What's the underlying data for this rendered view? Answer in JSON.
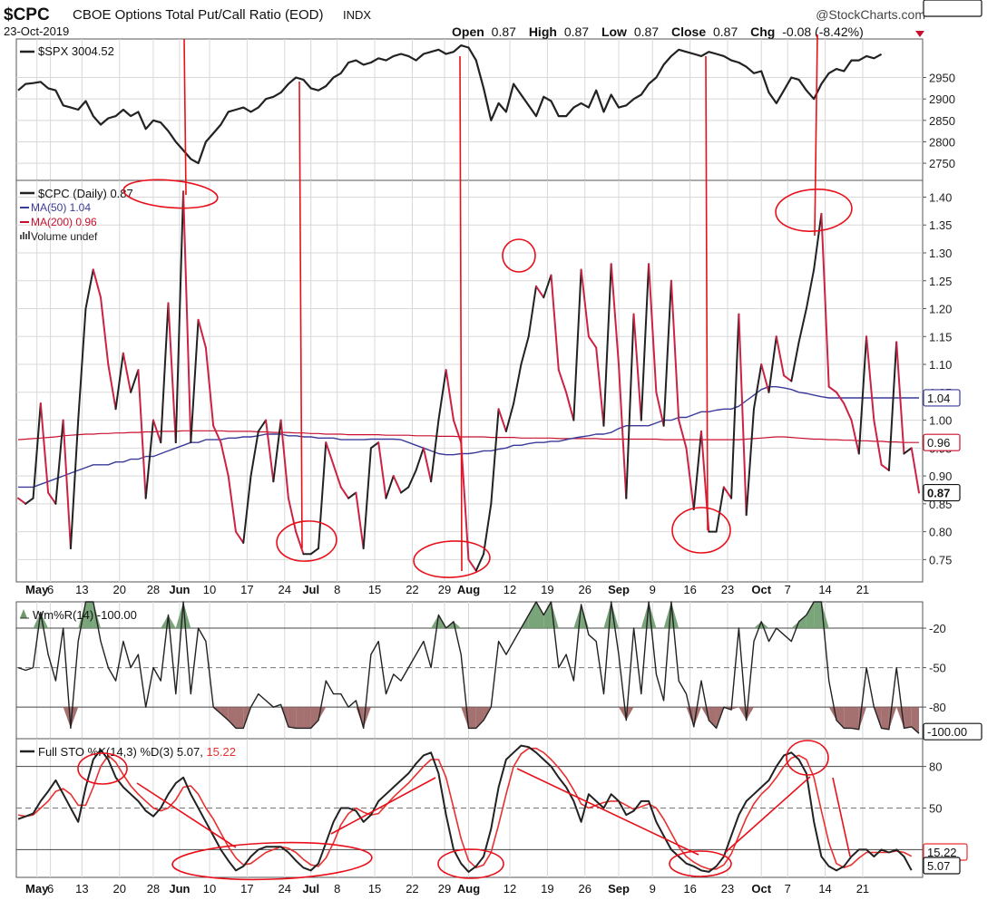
{
  "header": {
    "symbol": "$CPC",
    "description": "CBOE Options Total Put/Call Ratio (EOD)",
    "exchange": "INDX",
    "date": "23-Oct-2019",
    "source": "@StockCharts.com",
    "open_label": "Open",
    "open_value": "0.87",
    "high_label": "High",
    "high_value": "0.87",
    "low_label": "Low",
    "low_value": "0.87",
    "close_label": "Close",
    "close_value": "0.87",
    "chg_label": "Chg",
    "chg_value": "-0.08 (-8.42%)"
  },
  "colors": {
    "black": "#222222",
    "red": "#cc2244",
    "blue": "#3a3a9a",
    "maroon": "#c8102e",
    "annot": "#e8101a",
    "grid": "#d8d8d8",
    "fill_green": "#6b9a6b",
    "fill_red": "#9b6060"
  },
  "x_labels": [
    {
      "i": 3,
      "t": "May",
      "bold": true
    },
    {
      "i": 4.8,
      "t": "6"
    },
    {
      "i": 9,
      "t": "13"
    },
    {
      "i": 14,
      "t": "20"
    },
    {
      "i": 18.5,
      "t": "28"
    },
    {
      "i": 22,
      "t": "Jun",
      "bold": true
    },
    {
      "i": 26,
      "t": "10"
    },
    {
      "i": 31,
      "t": "17"
    },
    {
      "i": 36,
      "t": "24"
    },
    {
      "i": 39.5,
      "t": "Jul",
      "bold": true
    },
    {
      "i": 43,
      "t": "8"
    },
    {
      "i": 48,
      "t": "15"
    },
    {
      "i": 53,
      "t": "22"
    },
    {
      "i": 57.3,
      "t": "29"
    },
    {
      "i": 60.5,
      "t": "Aug",
      "bold": true
    },
    {
      "i": 66,
      "t": "12"
    },
    {
      "i": 71,
      "t": "19"
    },
    {
      "i": 76,
      "t": "26"
    },
    {
      "i": 80.5,
      "t": "Sep",
      "bold": true
    },
    {
      "i": 85,
      "t": "9"
    },
    {
      "i": 90,
      "t": "16"
    },
    {
      "i": 95,
      "t": "23"
    },
    {
      "i": 99.5,
      "t": "Oct",
      "bold": true
    },
    {
      "i": 103,
      "t": "7"
    },
    {
      "i": 108,
      "t": "14"
    },
    {
      "i": 113,
      "t": "21"
    }
  ],
  "chart_data": [
    {
      "type": "line",
      "panel": "spx",
      "legend": "$SPX 3004.52",
      "last_label": "3004.52",
      "y_ticks": [
        2750,
        2800,
        2850,
        2900,
        2950
      ],
      "ylim": [
        2710,
        3040
      ],
      "series": [
        {
          "values": [
            2920,
            2935,
            2937,
            2940,
            2925,
            2920,
            2885,
            2880,
            2875,
            2895,
            2860,
            2840,
            2855,
            2860,
            2875,
            2860,
            2870,
            2830,
            2850,
            2845,
            2825,
            2800,
            2780,
            2760,
            2750,
            2800,
            2820,
            2840,
            2870,
            2875,
            2880,
            2870,
            2880,
            2900,
            2905,
            2915,
            2935,
            2950,
            2945,
            2925,
            2920,
            2930,
            2950,
            2960,
            2985,
            2990,
            2980,
            2985,
            2995,
            2990,
            3000,
            3005,
            3000,
            2990,
            3005,
            3010,
            3015,
            3005,
            3010,
            3025,
            3020,
            2990,
            2925,
            2850,
            2890,
            2870,
            2935,
            2910,
            2885,
            2860,
            2905,
            2895,
            2860,
            2860,
            2880,
            2890,
            2880,
            2920,
            2870,
            2910,
            2880,
            2885,
            2900,
            2910,
            2935,
            2950,
            2980,
            3000,
            3015,
            3010,
            3005,
            3000,
            3010,
            3005,
            3000,
            2990,
            2985,
            2975,
            2960,
            2965,
            2915,
            2890,
            2920,
            2950,
            2945,
            2920,
            2900,
            2935,
            2960,
            2970,
            2965,
            2990,
            2990,
            3000,
            2995,
            3004.52
          ]
        }
      ]
    },
    {
      "type": "line",
      "panel": "cpc",
      "legend": "$CPC (Daily) 0.87",
      "legend_ma50": "MA(50) 1.04",
      "legend_ma200": "MA(200) 0.96",
      "legend_volume": "Volume undef",
      "last_label": "0.87",
      "ma50_label": "1.04",
      "ma200_label": "0.96",
      "y_ticks": [
        0.75,
        0.8,
        0.85,
        0.9,
        0.95,
        1.0,
        1.05,
        1.1,
        1.15,
        1.2,
        1.25,
        1.3,
        1.35,
        1.4
      ],
      "ylim": [
        0.71,
        1.43
      ],
      "series": [
        {
          "name": "$CPC",
          "values": [
            0.86,
            0.85,
            0.86,
            1.03,
            0.87,
            0.85,
            1.0,
            0.77,
            1.0,
            1.2,
            1.27,
            1.22,
            1.1,
            1.02,
            1.12,
            1.05,
            1.09,
            0.86,
            1.0,
            0.96,
            1.21,
            0.96,
            1.41,
            0.96,
            1.18,
            1.13,
            0.99,
            0.96,
            0.9,
            0.8,
            0.78,
            0.9,
            0.98,
            1.0,
            0.89,
            1.0,
            0.86,
            0.8,
            0.76,
            0.76,
            0.77,
            0.96,
            0.92,
            0.88,
            0.86,
            0.87,
            0.77,
            0.95,
            0.96,
            0.86,
            0.9,
            0.87,
            0.88,
            0.91,
            0.95,
            0.89,
            1.0,
            1.09,
            1.0,
            0.96,
            0.75,
            0.73,
            0.76,
            0.85,
            1.02,
            0.98,
            1.03,
            1.1,
            1.15,
            1.24,
            1.22,
            1.26,
            1.09,
            1.05,
            1.0,
            1.27,
            1.15,
            1.13,
            0.99,
            1.28,
            1.1,
            0.86,
            1.19,
            1.0,
            1.28,
            1.05,
            0.99,
            1.25,
            1.0,
            0.95,
            0.84,
            0.98,
            0.8,
            0.8,
            0.88,
            0.86,
            1.19,
            0.83,
            1.02,
            1.1,
            1.05,
            1.15,
            1.08,
            1.07,
            1.14,
            1.2,
            1.27,
            1.37,
            1.06,
            1.05,
            1.03,
            1.0,
            0.94,
            1.15,
            1.0,
            0.92,
            0.91,
            1.14,
            0.94,
            0.95,
            0.87
          ]
        },
        {
          "name": "MA(50)",
          "values": [
            0.88,
            0.88,
            0.88,
            0.885,
            0.89,
            0.895,
            0.9,
            0.905,
            0.91,
            0.915,
            0.92,
            0.92,
            0.92,
            0.925,
            0.925,
            0.93,
            0.93,
            0.935,
            0.935,
            0.94,
            0.945,
            0.95,
            0.955,
            0.96,
            0.96,
            0.965,
            0.965,
            0.965,
            0.968,
            0.968,
            0.97,
            0.97,
            0.972,
            0.975,
            0.975,
            0.975,
            0.972,
            0.972,
            0.97,
            0.97,
            0.968,
            0.968,
            0.968,
            0.965,
            0.965,
            0.965,
            0.965,
            0.966,
            0.966,
            0.966,
            0.966,
            0.965,
            0.96,
            0.955,
            0.95,
            0.945,
            0.94,
            0.938,
            0.938,
            0.94,
            0.94,
            0.942,
            0.945,
            0.945,
            0.948,
            0.95,
            0.955,
            0.955,
            0.958,
            0.96,
            0.96,
            0.962,
            0.962,
            0.965,
            0.968,
            0.97,
            0.972,
            0.975,
            0.975,
            0.978,
            0.985,
            0.99,
            0.99,
            0.99,
            0.99,
            0.995,
            1.0,
            1.0,
            1.005,
            1.005,
            1.01,
            1.015,
            1.015,
            1.018,
            1.02,
            1.02,
            1.025,
            1.035,
            1.045,
            1.055,
            1.06,
            1.06,
            1.058,
            1.055,
            1.05,
            1.048,
            1.045,
            1.042,
            1.04,
            1.04,
            1.04,
            1.04,
            1.04,
            1.04,
            1.04,
            1.04,
            1.04,
            1.04,
            1.04,
            1.04,
            1.04
          ]
        },
        {
          "name": "MA(200)",
          "values": [
            0.965,
            0.966,
            0.967,
            0.968,
            0.969,
            0.97,
            0.972,
            0.973,
            0.974,
            0.975,
            0.975,
            0.976,
            0.976,
            0.977,
            0.977,
            0.978,
            0.978,
            0.979,
            0.979,
            0.98,
            0.98,
            0.98,
            0.981,
            0.981,
            0.981,
            0.981,
            0.981,
            0.981,
            0.98,
            0.98,
            0.98,
            0.98,
            0.979,
            0.979,
            0.978,
            0.978,
            0.978,
            0.977,
            0.977,
            0.976,
            0.976,
            0.975,
            0.975,
            0.975,
            0.974,
            0.974,
            0.974,
            0.974,
            0.974,
            0.973,
            0.973,
            0.973,
            0.973,
            0.972,
            0.972,
            0.972,
            0.971,
            0.971,
            0.971,
            0.97,
            0.97,
            0.97,
            0.97,
            0.969,
            0.969,
            0.969,
            0.969,
            0.968,
            0.968,
            0.968,
            0.968,
            0.968,
            0.967,
            0.967,
            0.967,
            0.967,
            0.967,
            0.967,
            0.966,
            0.966,
            0.966,
            0.966,
            0.966,
            0.966,
            0.966,
            0.966,
            0.965,
            0.965,
            0.965,
            0.965,
            0.965,
            0.965,
            0.965,
            0.965,
            0.965,
            0.965,
            0.965,
            0.966,
            0.967,
            0.968,
            0.969,
            0.97,
            0.97,
            0.969,
            0.968,
            0.967,
            0.966,
            0.966,
            0.965,
            0.965,
            0.964,
            0.964,
            0.963,
            0.963,
            0.962,
            0.962,
            0.961,
            0.961,
            0.96,
            0.96,
            0.96
          ]
        }
      ]
    },
    {
      "type": "line",
      "panel": "wmr",
      "legend": "Wm%R(14) -100.00",
      "last_label": "-100.00",
      "y_ticks": [
        -20,
        -50,
        -80
      ],
      "ylim": [
        -104,
        0
      ],
      "series": [
        {
          "values": [
            -50,
            -52,
            -50,
            -8,
            -40,
            -60,
            -20,
            -96,
            -30,
            0,
            0,
            -30,
            -50,
            -60,
            -30,
            -50,
            -40,
            -80,
            -50,
            -60,
            -10,
            -70,
            0,
            -70,
            -20,
            -30,
            -80,
            -85,
            -90,
            -96,
            -96,
            -80,
            -70,
            -75,
            -80,
            -78,
            -95,
            -96,
            -96,
            -96,
            -90,
            -60,
            -70,
            -70,
            -80,
            -75,
            -96,
            -40,
            -30,
            -70,
            -55,
            -60,
            -50,
            -40,
            -30,
            -50,
            -10,
            -20,
            -15,
            -40,
            -96,
            -96,
            -90,
            -80,
            -30,
            -40,
            -30,
            -20,
            -10,
            0,
            -10,
            0,
            -50,
            -40,
            -60,
            -2,
            -25,
            -30,
            -70,
            0,
            -40,
            -90,
            -20,
            -70,
            0,
            -55,
            -75,
            0,
            -60,
            -70,
            -95,
            -60,
            -90,
            -96,
            -80,
            -82,
            -20,
            -90,
            -30,
            -15,
            -30,
            -20,
            -25,
            -30,
            -15,
            -10,
            0,
            0,
            -60,
            -90,
            -96,
            -96,
            -97,
            -50,
            -80,
            -96,
            -97,
            -50,
            -96,
            -95,
            -100
          ]
        }
      ],
      "fill_above": -20,
      "fill_below": -80
    },
    {
      "type": "line",
      "panel": "sto",
      "legend": "Full STO %K(14,3) %D(3)",
      "legend_k": "5.07",
      "legend_d": "15.22",
      "last_label_k": "5.07",
      "last_label_d": "15.22",
      "y_ticks": [
        20,
        50,
        80
      ],
      "ylim": [
        0,
        100
      ],
      "series": [
        {
          "name": "%K",
          "values": [
            42,
            44,
            46,
            55,
            62,
            70,
            60,
            50,
            40,
            65,
            85,
            92,
            85,
            72,
            65,
            60,
            55,
            48,
            44,
            50,
            60,
            68,
            72,
            60,
            50,
            40,
            30,
            20,
            12,
            5,
            8,
            15,
            20,
            22,
            22,
            22,
            18,
            12,
            7,
            5,
            10,
            25,
            40,
            50,
            50,
            48,
            40,
            45,
            55,
            60,
            65,
            70,
            75,
            82,
            88,
            90,
            75,
            45,
            20,
            10,
            4,
            8,
            15,
            35,
            65,
            85,
            90,
            95,
            94,
            90,
            85,
            80,
            72,
            65,
            55,
            40,
            60,
            55,
            50,
            60,
            55,
            45,
            48,
            55,
            55,
            40,
            30,
            20,
            15,
            10,
            8,
            5,
            4,
            8,
            15,
            30,
            45,
            55,
            60,
            65,
            70,
            80,
            88,
            90,
            85,
            75,
            40,
            15,
            8,
            5,
            8,
            15,
            20,
            20,
            15,
            20,
            18,
            20,
            15,
            5.07
          ]
        },
        {
          "name": "%D",
          "values": [
            45,
            44,
            45,
            50,
            55,
            62,
            64,
            60,
            52,
            52,
            65,
            80,
            88,
            83,
            74,
            66,
            60,
            55,
            50,
            48,
            50,
            56,
            65,
            66,
            60,
            50,
            42,
            32,
            22,
            14,
            9,
            10,
            14,
            18,
            20,
            22,
            21,
            18,
            13,
            9,
            8,
            14,
            25,
            38,
            46,
            50,
            47,
            45,
            46,
            52,
            58,
            63,
            68,
            74,
            80,
            85,
            85,
            72,
            50,
            28,
            12,
            7,
            9,
            18,
            38,
            60,
            80,
            89,
            93,
            93,
            90,
            85,
            79,
            72,
            63,
            53,
            50,
            52,
            54,
            55,
            55,
            52,
            49,
            51,
            53,
            50,
            42,
            32,
            22,
            15,
            11,
            8,
            6,
            6,
            9,
            17,
            30,
            43,
            53,
            60,
            65,
            72,
            80,
            86,
            88,
            85,
            72,
            48,
            25,
            10,
            7,
            9,
            14,
            18,
            18,
            18,
            18,
            19,
            18,
            15.22
          ]
        }
      ]
    }
  ],
  "annotations": "red trend lines and circles drawn on chart"
}
